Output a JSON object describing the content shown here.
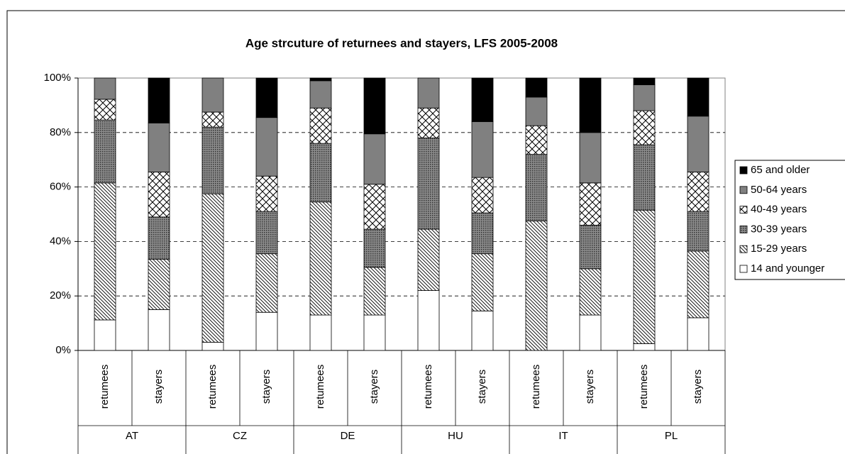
{
  "chart_data": {
    "type": "stacked_bar",
    "title": "Age strcuture of returnees and stayers, LFS 2005-2008",
    "categories": [
      "retumees",
      "stayers",
      "retumees",
      "stayers",
      "retumees",
      "stayers",
      "retumees",
      "stayers",
      "retumees",
      "stayers",
      "retumees",
      "stayers"
    ],
    "groups": [
      "AT",
      "CZ",
      "DE",
      "HU",
      "IT",
      "PL"
    ],
    "series": [
      {
        "name": "14 and younger",
        "color": "#ffffff",
        "pattern": "none",
        "values": [
          11.2,
          15,
          3,
          14,
          13,
          13,
          22,
          14.5,
          0,
          13,
          2.5,
          12
        ]
      },
      {
        "name": "15-29 years",
        "color": "#ffffff",
        "pattern": "diagonal",
        "values": [
          50.3,
          18.5,
          54.5,
          21.5,
          41.5,
          17.5,
          22.5,
          21,
          47.5,
          17,
          49,
          24.5
        ]
      },
      {
        "name": "30-39 years",
        "color": "#8c8c8c",
        "pattern": "dense",
        "values": [
          23.1,
          15.5,
          24.5,
          15.5,
          21.5,
          14,
          33.5,
          15,
          24.5,
          16,
          24,
          14.5
        ]
      },
      {
        "name": "40-49 years",
        "color": "#ffffff",
        "pattern": "cross",
        "values": [
          7.6,
          16.5,
          5.5,
          13,
          13,
          16.5,
          11,
          13,
          10.5,
          15.5,
          12.5,
          14.5
        ]
      },
      {
        "name": "50-64 years",
        "color": "#808080",
        "pattern": "none",
        "values": [
          7.8,
          18,
          12.5,
          21.5,
          10,
          18.5,
          11,
          20.5,
          10.5,
          18.5,
          9.5,
          20.5
        ]
      },
      {
        "name": "65 and older",
        "color": "#000000",
        "pattern": "none",
        "values": [
          0,
          16.5,
          0,
          14.5,
          1,
          20.5,
          0,
          16,
          7,
          20,
          2.5,
          14
        ]
      }
    ],
    "ylim": [
      0,
      100
    ],
    "yticks": [
      {
        "value": 0,
        "label": "0%"
      },
      {
        "value": 20,
        "label": "20%"
      },
      {
        "value": 40,
        "label": "40%"
      },
      {
        "value": 60,
        "label": "60%"
      },
      {
        "value": 80,
        "label": "80%"
      },
      {
        "value": 100,
        "label": "100%"
      }
    ],
    "grid": true,
    "legend": "right"
  }
}
